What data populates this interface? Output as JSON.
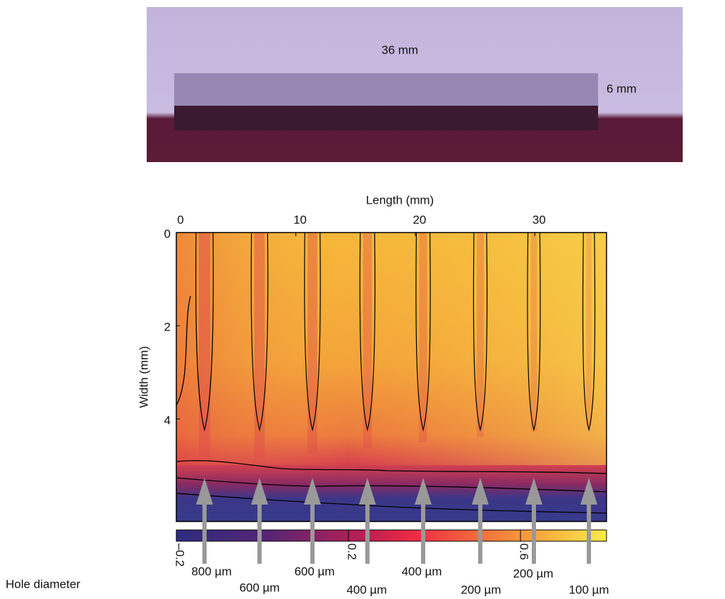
{
  "photo": {
    "length_label": "36 mm",
    "width_label": "6 mm"
  },
  "heatmap": {
    "x_label": "Length (mm)",
    "y_label": "Width (mm)",
    "xlim": [
      0,
      36
    ],
    "xticks": [
      0,
      10,
      20,
      30
    ],
    "ylim": [
      0,
      6.2
    ],
    "yticks": [
      0,
      2,
      4
    ],
    "colorbar": {
      "lim": [
        -0.2,
        0.8
      ],
      "ticks": [
        {
          "value": -0.2,
          "label": "–0.2"
        },
        0.2,
        0.6
      ]
    }
  },
  "hole_axis_label": "Hole diameter",
  "holes": [
    {
      "label": "800 µm"
    },
    {
      "label": "600 µm"
    },
    {
      "label": "600 µm"
    },
    {
      "label": "400 µm"
    },
    {
      "label": "400 µm"
    },
    {
      "label": "200 µm"
    },
    {
      "label": "200 µm"
    },
    {
      "label": "100 µm"
    }
  ]
}
